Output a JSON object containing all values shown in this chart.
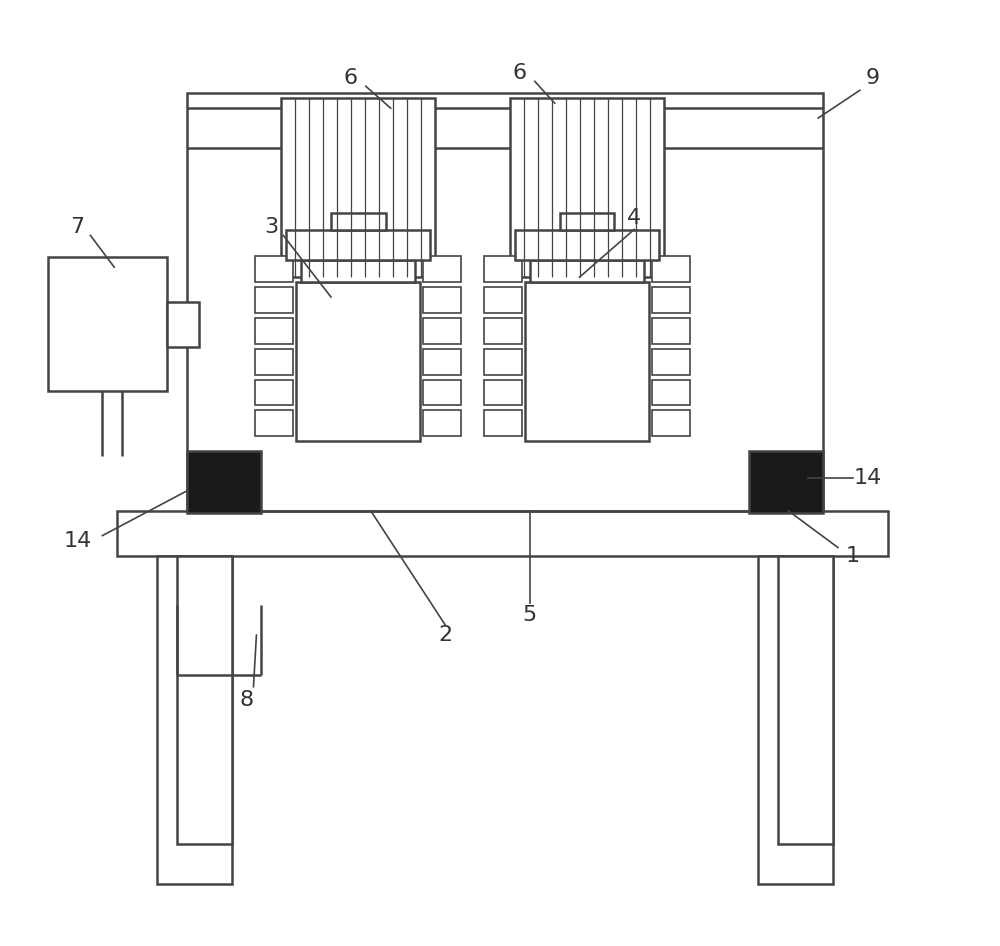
{
  "bg_color": "#ffffff",
  "line_color": "#444444",
  "dark_fill": "#1a1a1a",
  "fig_width": 10.0,
  "fig_height": 9.46
}
